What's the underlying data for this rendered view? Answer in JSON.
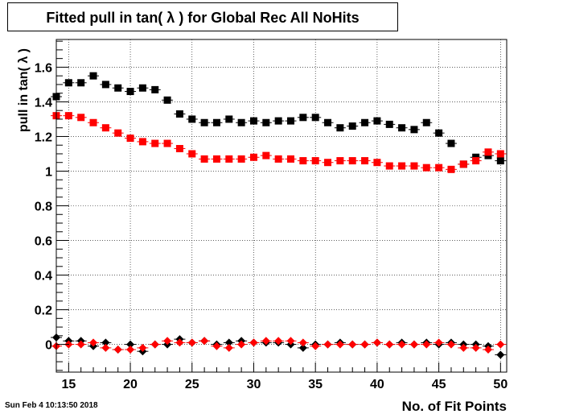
{
  "stamp": "Sun Feb  4 10:13:50 2018",
  "chart_data": {
    "type": "scatter",
    "title": "Fitted pull in tan( λ ) for Global Rec All NoHits",
    "xlabel": "No. of Fit Points",
    "ylabel": "pull in tan( λ )",
    "xlim": [
      14,
      50.5
    ],
    "ylim": [
      -0.16,
      1.76
    ],
    "xticks": [
      15,
      20,
      25,
      30,
      35,
      40,
      45,
      50
    ],
    "yticks": [
      0,
      0.2,
      0.4,
      0.6,
      0.8,
      1,
      1.2,
      1.4,
      1.6
    ],
    "ytick_labels": [
      "0",
      "0.2",
      "0.4",
      "0.6",
      "0.8",
      "1",
      "1.2",
      "1.4",
      "1.6"
    ],
    "grid": true,
    "x": [
      14,
      15,
      16,
      17,
      18,
      19,
      20,
      21,
      22,
      23,
      24,
      25,
      26,
      27,
      28,
      29,
      30,
      31,
      32,
      33,
      34,
      35,
      36,
      37,
      38,
      39,
      40,
      41,
      42,
      43,
      44,
      45,
      46,
      47,
      48,
      49,
      50
    ],
    "series": [
      {
        "color": "#000000",
        "marker": "square",
        "values": [
          1.43,
          1.51,
          1.51,
          1.55,
          1.5,
          1.48,
          1.46,
          1.48,
          1.47,
          1.41,
          1.33,
          1.3,
          1.28,
          1.28,
          1.3,
          1.28,
          1.29,
          1.28,
          1.29,
          1.29,
          1.31,
          1.31,
          1.28,
          1.25,
          1.26,
          1.28,
          1.29,
          1.27,
          1.25,
          1.24,
          1.28,
          1.22,
          1.16,
          1.04,
          1.08,
          1.09,
          1.06
        ]
      },
      {
        "color": "#ff0000",
        "marker": "square",
        "values": [
          1.32,
          1.32,
          1.31,
          1.28,
          1.25,
          1.22,
          1.19,
          1.17,
          1.16,
          1.16,
          1.13,
          1.1,
          1.07,
          1.07,
          1.07,
          1.07,
          1.08,
          1.09,
          1.07,
          1.07,
          1.06,
          1.06,
          1.05,
          1.06,
          1.06,
          1.06,
          1.05,
          1.03,
          1.03,
          1.03,
          1.02,
          1.02,
          1.01,
          1.04,
          1.06,
          1.11,
          1.1
        ]
      },
      {
        "color": "#000000",
        "marker": "diamond",
        "values": [
          0.04,
          0.02,
          0.02,
          -0.01,
          0.01,
          -0.03,
          0.0,
          -0.04,
          0.0,
          0.0,
          0.03,
          0.01,
          0.02,
          0.0,
          0.01,
          0.02,
          0.01,
          0.01,
          0.01,
          0.0,
          -0.02,
          0.0,
          0.0,
          0.01,
          0.0,
          0.0,
          0.01,
          0.0,
          0.01,
          0.0,
          0.01,
          0.0,
          0.01,
          0.0,
          0.0,
          -0.01,
          -0.06
        ]
      },
      {
        "color": "#ff0000",
        "marker": "diamond",
        "values": [
          -0.01,
          0.0,
          0.0,
          0.01,
          -0.02,
          -0.03,
          -0.03,
          -0.02,
          0.0,
          0.02,
          0.01,
          0.01,
          0.02,
          -0.01,
          -0.02,
          0.0,
          0.01,
          0.02,
          0.02,
          0.02,
          0.01,
          -0.01,
          0.0,
          0.0,
          0.0,
          0.0,
          0.01,
          0.0,
          0.0,
          0.0,
          0.0,
          0.01,
          0.0,
          -0.02,
          -0.02,
          -0.03,
          0.0
        ]
      }
    ]
  }
}
